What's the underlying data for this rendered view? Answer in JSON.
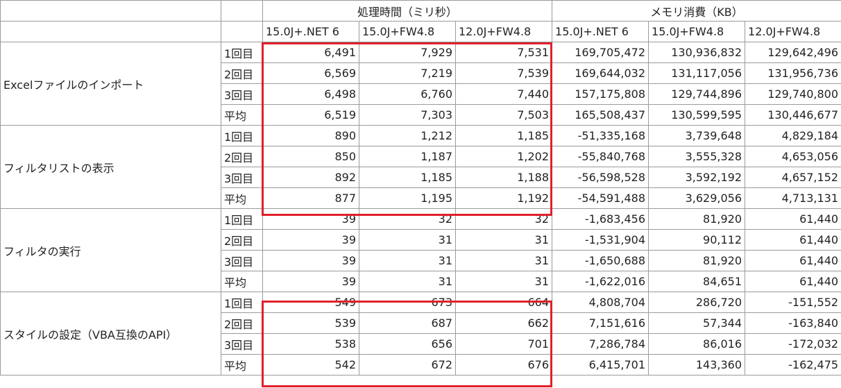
{
  "header": {
    "time_title": "処理時間（ミリ秒）",
    "memory_title": "メモリ消費（KB）",
    "columns": [
      "15.0J+.NET 6",
      "15.0J+FW4.8",
      "12.0J+FW4.8",
      "15.0J+.NET 6",
      "15.0J+FW4.8",
      "12.0J+FW4.8"
    ]
  },
  "groups": [
    {
      "name": "Excelファイルのインポート",
      "rows": [
        {
          "label": "1回目",
          "values": [
            "6,491",
            "7,929",
            "7,531",
            "169,705,472",
            "130,936,832",
            "129,642,496"
          ]
        },
        {
          "label": "2回目",
          "values": [
            "6,569",
            "7,219",
            "7,539",
            "169,644,032",
            "131,117,056",
            "131,956,736"
          ]
        },
        {
          "label": "3回目",
          "values": [
            "6,498",
            "6,760",
            "7,440",
            "157,175,808",
            "129,744,896",
            "129,740,800"
          ]
        },
        {
          "label": "平均",
          "values": [
            "6,519",
            "7,303",
            "7,503",
            "165,508,437",
            "130,599,595",
            "130,446,677"
          ]
        }
      ]
    },
    {
      "name": "フィルタリストの表示",
      "rows": [
        {
          "label": "1回目",
          "values": [
            "890",
            "1,212",
            "1,185",
            "-51,335,168",
            "3,739,648",
            "4,829,184"
          ]
        },
        {
          "label": "2回目",
          "values": [
            "850",
            "1,187",
            "1,202",
            "-55,840,768",
            "3,555,328",
            "4,653,056"
          ]
        },
        {
          "label": "3回目",
          "values": [
            "892",
            "1,185",
            "1,188",
            "-56,598,528",
            "3,592,192",
            "4,657,152"
          ]
        },
        {
          "label": "平均",
          "values": [
            "877",
            "1,195",
            "1,192",
            "-54,591,488",
            "3,629,056",
            "4,713,131"
          ]
        }
      ]
    },
    {
      "name": "フィルタの実行",
      "rows": [
        {
          "label": "1回目",
          "values": [
            "39",
            "32",
            "32",
            "-1,683,456",
            "81,920",
            "61,440"
          ]
        },
        {
          "label": "2回目",
          "values": [
            "39",
            "31",
            "31",
            "-1,531,904",
            "90,112",
            "61,440"
          ]
        },
        {
          "label": "3回目",
          "values": [
            "39",
            "31",
            "31",
            "-1,650,688",
            "81,920",
            "61,440"
          ]
        },
        {
          "label": "平均",
          "values": [
            "39",
            "31",
            "31",
            "-1,622,016",
            "84,651",
            "61,440"
          ]
        }
      ]
    },
    {
      "name": "スタイルの設定（VBA互換のAPI）",
      "rows": [
        {
          "label": "1回目",
          "values": [
            "549",
            "673",
            "664",
            "4,808,704",
            "286,720",
            "-151,552"
          ]
        },
        {
          "label": "2回目",
          "values": [
            "539",
            "687",
            "662",
            "7,151,616",
            "57,344",
            "-163,840"
          ]
        },
        {
          "label": "3回目",
          "values": [
            "538",
            "656",
            "701",
            "7,286,784",
            "86,016",
            "-172,032"
          ]
        },
        {
          "label": "平均",
          "values": [
            "542",
            "672",
            "676",
            "6,415,701",
            "143,360",
            "-162,475"
          ]
        }
      ]
    }
  ]
}
